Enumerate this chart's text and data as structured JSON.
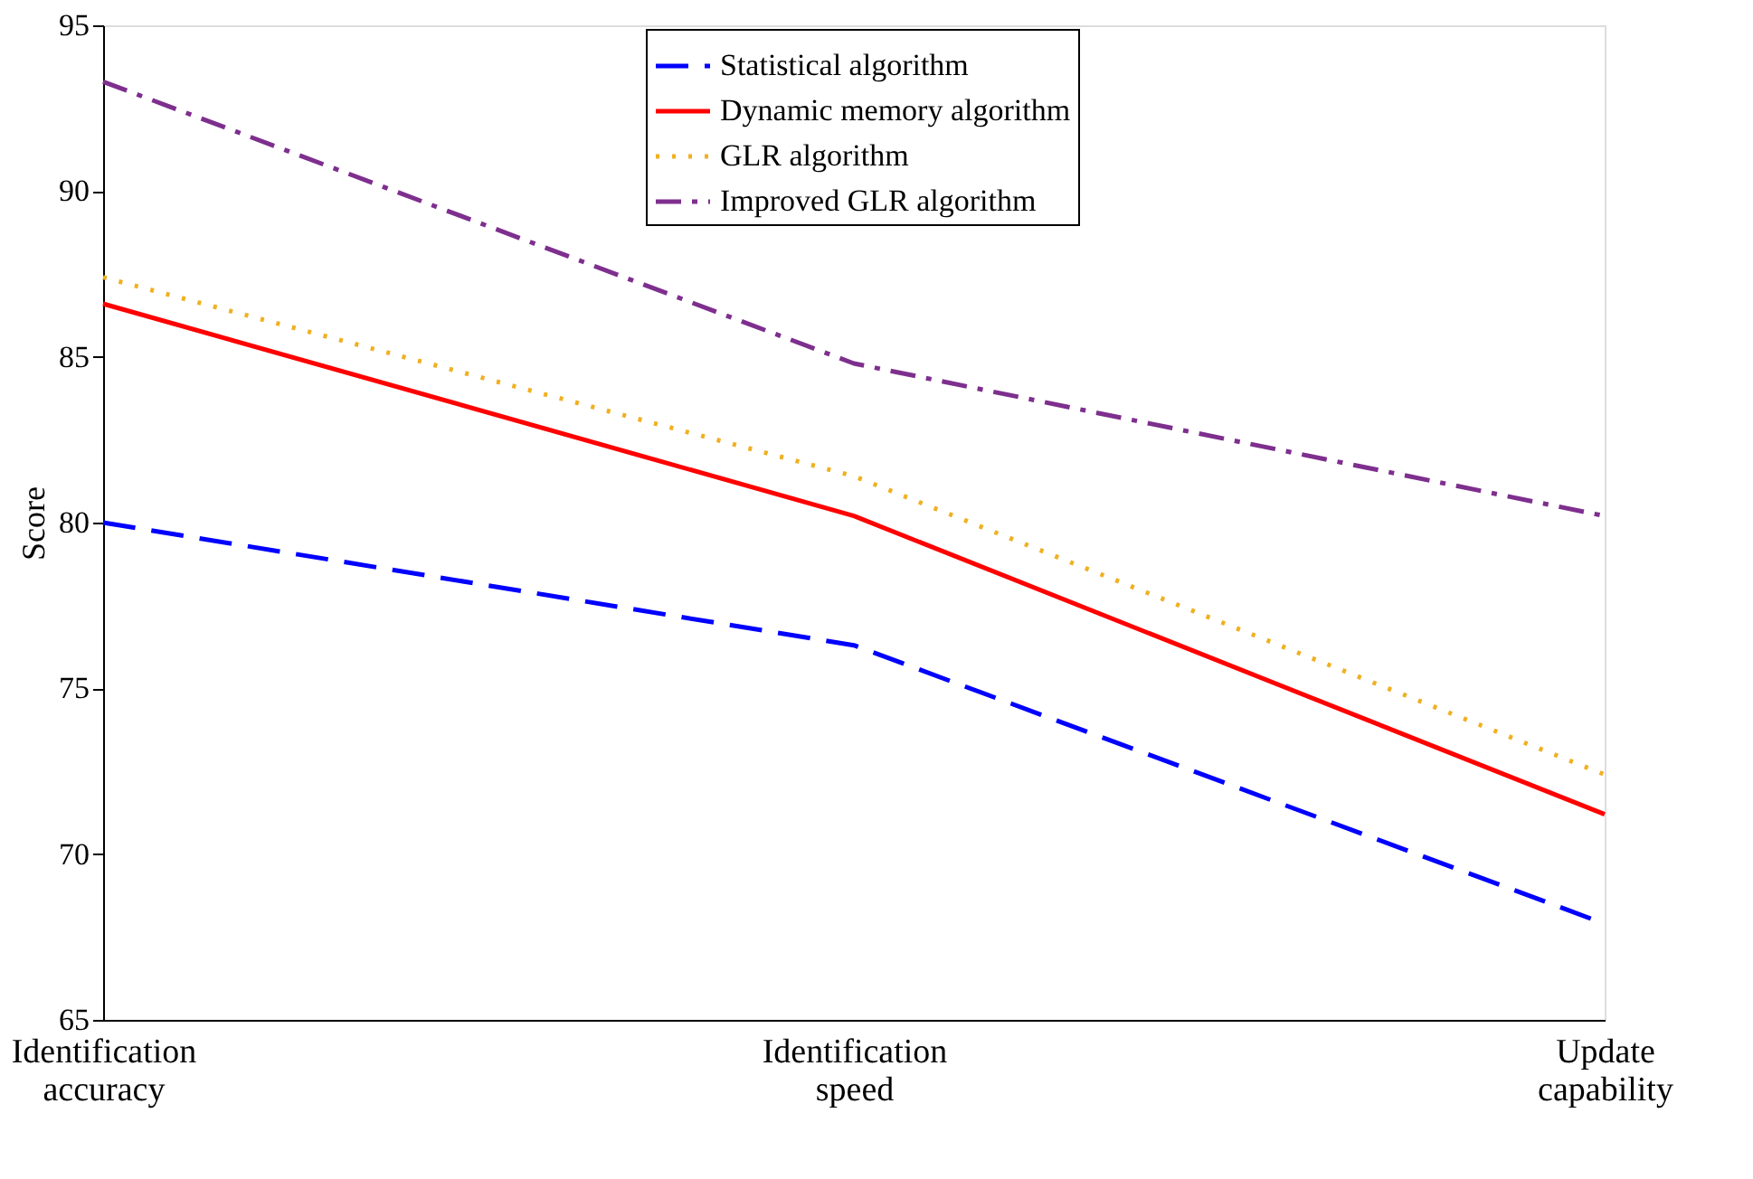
{
  "chart_data": {
    "type": "line",
    "ylabel": "Score",
    "categories": [
      "Identification accuracy",
      "Identification speed",
      "Update capability"
    ],
    "ylim": [
      65,
      95
    ],
    "yticks": [
      65,
      70,
      75,
      80,
      85,
      90,
      95
    ],
    "grid": false,
    "legend": "top right",
    "series": [
      {
        "name": "Statistical algorithm",
        "color": "#0000ff",
        "line_style": "dashed",
        "values": [
          80.0,
          76.3,
          67.9
        ]
      },
      {
        "name": "Dynamic memory algorithm",
        "color": "#ff0000",
        "line_style": "solid",
        "values": [
          86.6,
          80.2,
          71.2
        ]
      },
      {
        "name": "GLR algorithm",
        "color": "#f0b020",
        "line_style": "dotted",
        "values": [
          87.4,
          81.4,
          72.4
        ]
      },
      {
        "name": "Improved GLR algorithm",
        "color": "#7e2f8e",
        "line_style": "dashdot",
        "values": [
          93.3,
          84.8,
          80.2
        ]
      }
    ]
  }
}
